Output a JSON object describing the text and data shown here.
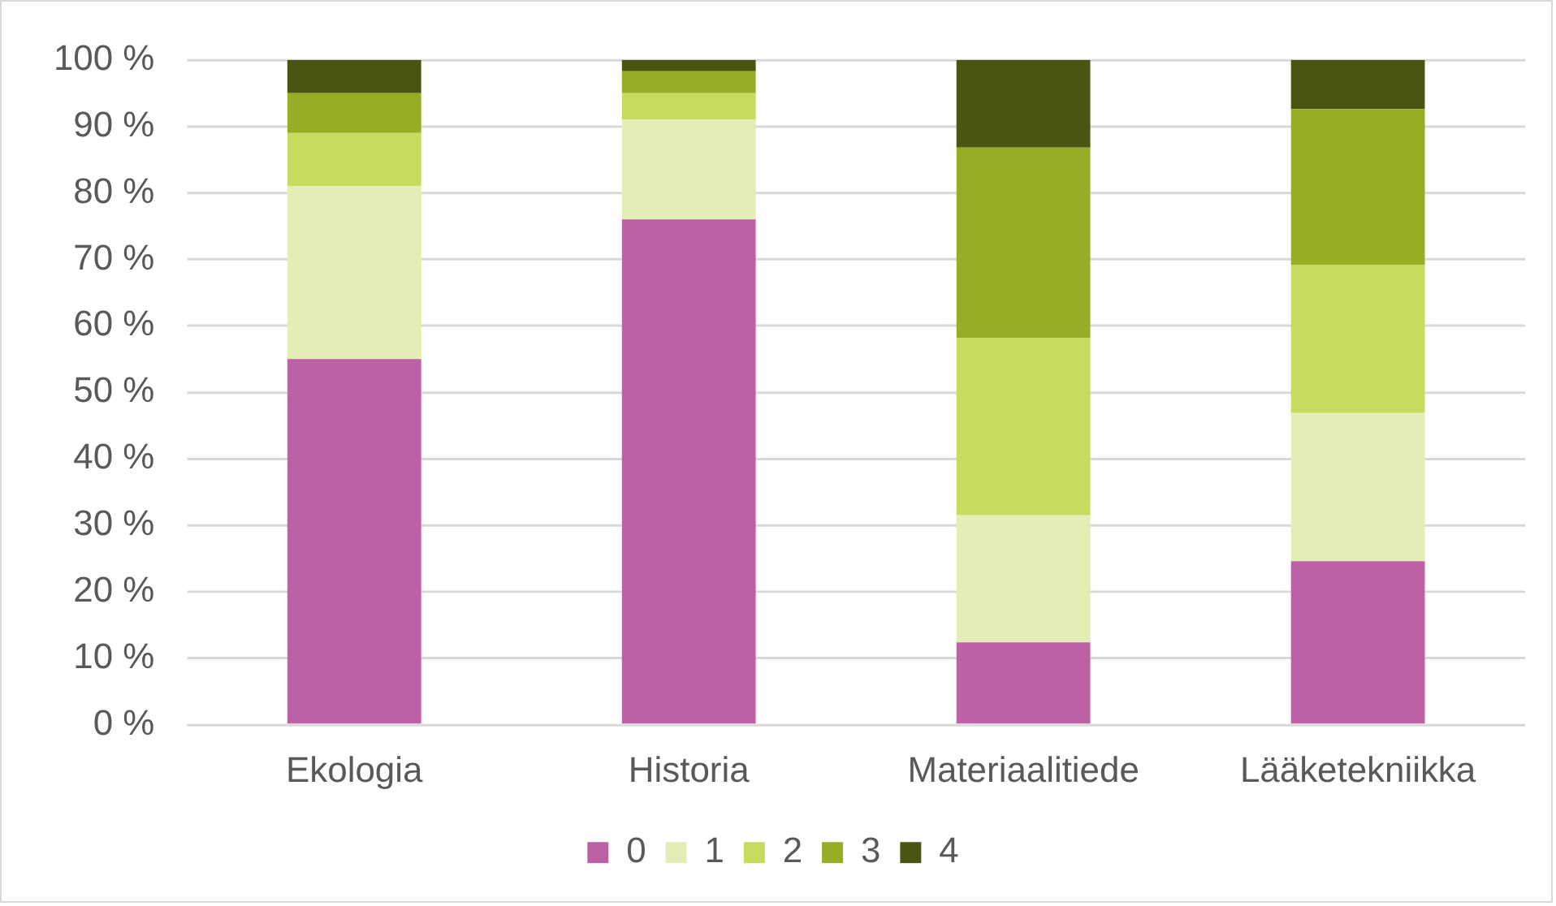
{
  "chart_data": {
    "type": "bar",
    "stacked": true,
    "categories": [
      "Ekologia",
      "Historia",
      "Materiaalitiede",
      "Lääketekniikka"
    ],
    "series": [
      {
        "name": "0",
        "color": "#bc61a6",
        "values": [
          55,
          76,
          12.4,
          24.6
        ]
      },
      {
        "name": "1",
        "color": "#e4edb5",
        "values": [
          26,
          15,
          19.1,
          22.3
        ]
      },
      {
        "name": "2",
        "color": "#c6dc5f",
        "values": [
          8,
          4,
          26.7,
          22.3
        ]
      },
      {
        "name": "3",
        "color": "#97ad26",
        "values": [
          6,
          3.3,
          28.6,
          23.4
        ]
      },
      {
        "name": "4",
        "color": "#4a5512",
        "values": [
          5,
          1.7,
          13.2,
          7.4
        ]
      }
    ],
    "ylim": [
      0,
      100
    ],
    "yticks": [
      {
        "value": 0,
        "label": "0 %"
      },
      {
        "value": 10,
        "label": "10 %"
      },
      {
        "value": 20,
        "label": "20 %"
      },
      {
        "value": 30,
        "label": "30 %"
      },
      {
        "value": 40,
        "label": "40 %"
      },
      {
        "value": 50,
        "label": "50 %"
      },
      {
        "value": 60,
        "label": "60 %"
      },
      {
        "value": 70,
        "label": "70 %"
      },
      {
        "value": 80,
        "label": "80 %"
      },
      {
        "value": 90,
        "label": "90 %"
      },
      {
        "value": 100,
        "label": "100 %"
      }
    ],
    "grid": "y",
    "legend": "bottom"
  }
}
